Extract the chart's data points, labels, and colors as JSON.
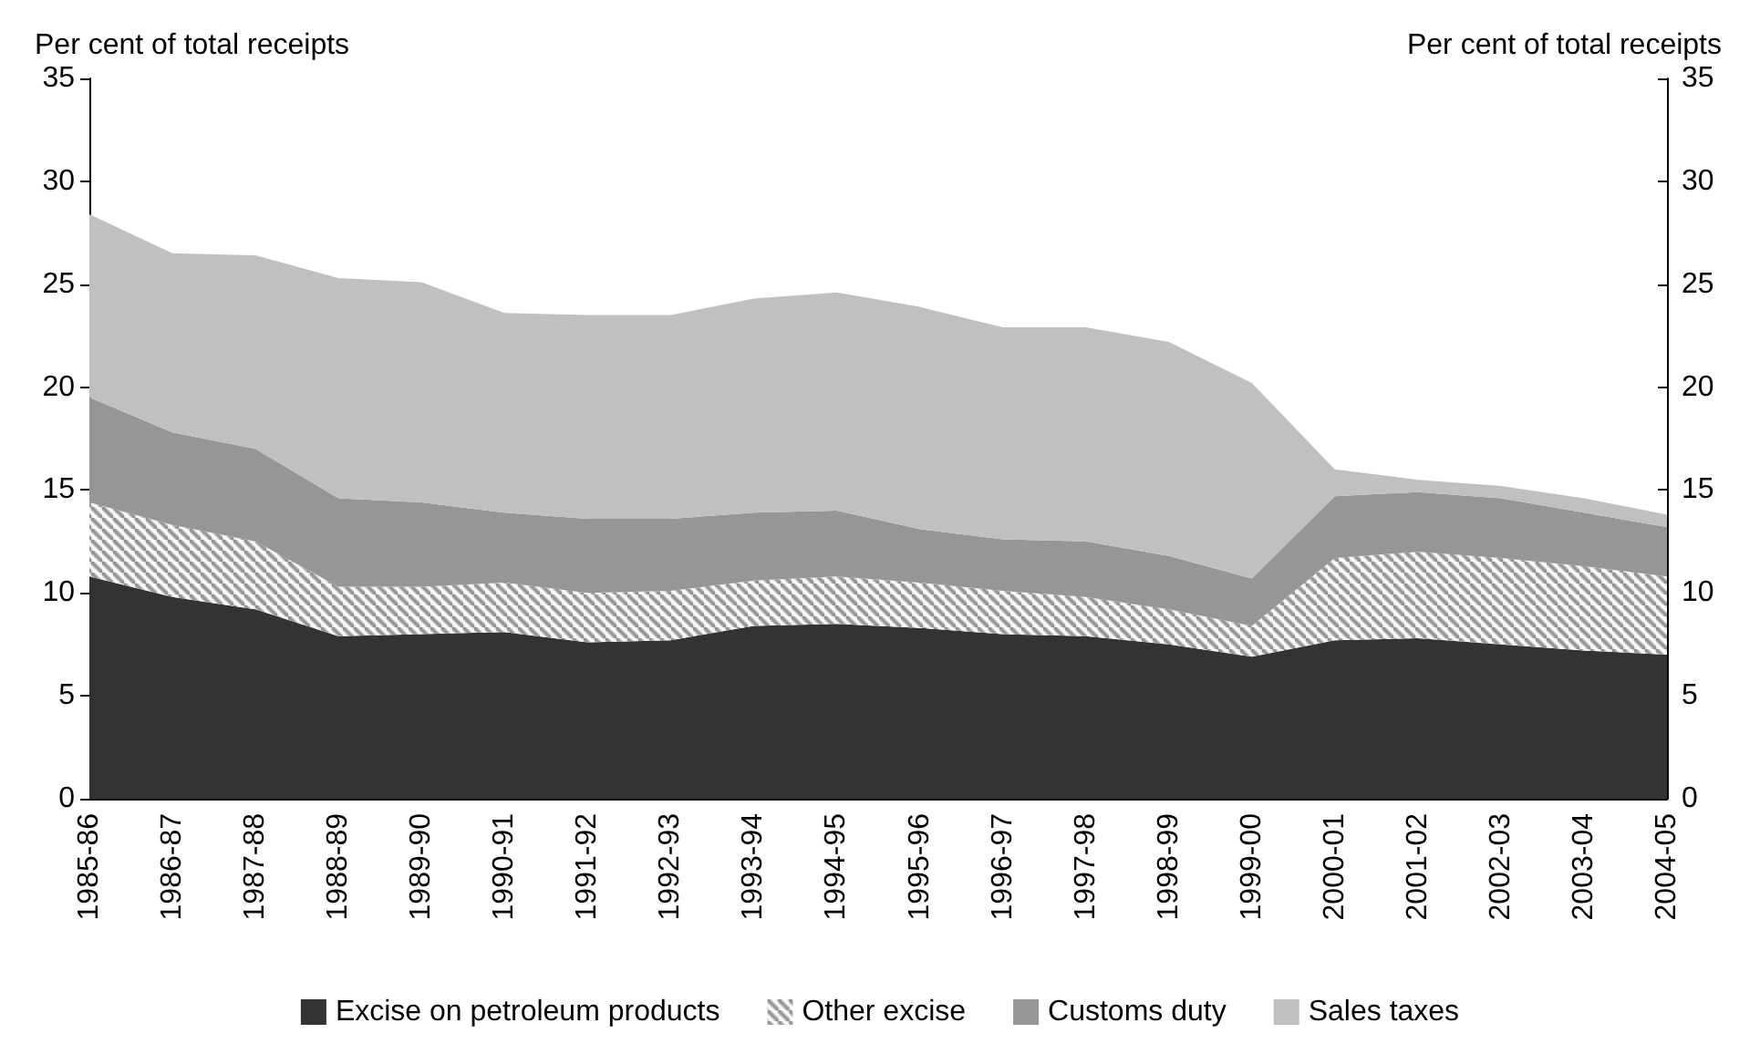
{
  "chart_data": {
    "type": "area",
    "stacked": true,
    "ylabel": "Per cent of total receipts",
    "y2label": "Per cent of total receipts",
    "categories": [
      "1985-86",
      "1986-87",
      "1987-88",
      "1988-89",
      "1989-90",
      "1990-91",
      "1991-92",
      "1992-93",
      "1993-94",
      "1994-95",
      "1995-96",
      "1996-97",
      "1997-98",
      "1998-99",
      "1999-00",
      "2000-01",
      "2001-02",
      "2002-03",
      "2003-04",
      "2004-05"
    ],
    "series": [
      {
        "name": "Excise on petroleum products",
        "color": "#333333",
        "values": [
          10.8,
          9.8,
          9.2,
          7.9,
          8.0,
          8.1,
          7.6,
          7.7,
          8.4,
          8.5,
          8.3,
          8.0,
          7.9,
          7.5,
          6.9,
          7.7,
          7.8,
          7.5,
          7.2,
          7.0
        ]
      },
      {
        "name": "Other excise",
        "color": "#8c8c8c",
        "values": [
          3.6,
          3.5,
          3.3,
          2.4,
          2.3,
          2.4,
          2.4,
          2.4,
          2.2,
          2.3,
          2.2,
          2.1,
          1.9,
          1.7,
          1.5,
          4.0,
          4.2,
          4.2,
          4.1,
          3.8
        ]
      },
      {
        "name": "Customs duty",
        "color": "#969696",
        "values": [
          5.1,
          4.5,
          4.5,
          4.3,
          4.1,
          3.4,
          3.6,
          3.5,
          3.3,
          3.2,
          2.6,
          2.5,
          2.7,
          2.6,
          2.3,
          3.0,
          2.9,
          2.9,
          2.6,
          2.4
        ]
      },
      {
        "name": "Sales taxes",
        "color": "#c0c0c0",
        "values": [
          8.9,
          8.7,
          9.4,
          10.7,
          10.7,
          9.7,
          9.9,
          9.9,
          10.4,
          10.6,
          10.8,
          10.3,
          10.4,
          10.4,
          9.5,
          1.3,
          0.6,
          0.6,
          0.7,
          0.6
        ]
      }
    ],
    "ylim": [
      0,
      35
    ],
    "yticks": [
      0,
      5,
      10,
      15,
      20,
      25,
      30,
      35
    ],
    "y2lim": [
      0,
      35
    ],
    "y2ticks": [
      0,
      5,
      10,
      15,
      20,
      25,
      30,
      35
    ],
    "grid": false,
    "legend": "bottom"
  }
}
